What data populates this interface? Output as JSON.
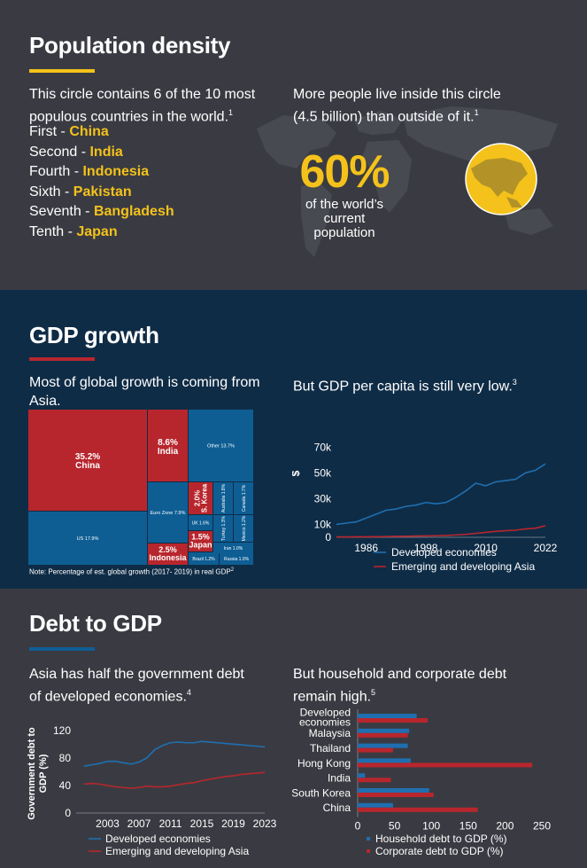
{
  "colors": {
    "yellow": "#f4c21b",
    "red": "#b8262d",
    "blue": "#0e5e94",
    "navy": "#0f2c46",
    "grey": "#3a3b42"
  },
  "population": {
    "title": "Population density",
    "intro": "This circle contains 6 of the 10 most populous countries in the world.",
    "intro_sup": "1",
    "ranks": [
      {
        "rank": "First - ",
        "country": "China"
      },
      {
        "rank": "Second - ",
        "country": "India"
      },
      {
        "rank": "Fourth - ",
        "country": "Indonesia"
      },
      {
        "rank": "Sixth - ",
        "country": "Pakistan"
      },
      {
        "rank": "Seventh - ",
        "country": "Bangladesh"
      },
      {
        "rank": "Tenth - ",
        "country": "Japan"
      }
    ],
    "right_text": "More people live inside this circle (4.5 billion) than outside of it.",
    "right_sup": "1",
    "big_pct": "60%",
    "pct_caption_1": "of the world’s",
    "pct_caption_2": "current",
    "pct_caption_3": "population"
  },
  "gdp": {
    "title": "GDP growth",
    "left_text": "Most of global growth is coming from Asia.",
    "right_text": "But GDP per capita is still very low.",
    "right_sup": "3",
    "note": "Note: Percentage of est. global growth (2017- 2019) in real GDP",
    "note_sup": "2"
  },
  "debt": {
    "title": "Debt to GDP",
    "left_text_1": "Asia has half the government debt",
    "left_text_2": "of developed economies.",
    "left_sup": "4",
    "right_text_1": "But household and corporate debt",
    "right_text_2": "remain high.",
    "right_sup": "5"
  },
  "chart_data": [
    {
      "type": "heatmap",
      "subtype": "treemap",
      "cells": [
        {
          "label": "China",
          "value": 35.2,
          "pct_label": "35.2%",
          "color": "#b8262d"
        },
        {
          "label": "US",
          "value": 17.9,
          "pct_label": "US 17.9%",
          "color": "#0e5e94"
        },
        {
          "label": "India",
          "value": 8.6,
          "pct_label": "8.6%",
          "color": "#b8262d"
        },
        {
          "label": "Other",
          "value": 13.7,
          "pct_label": "Other 13.7%",
          "color": "#0e5e94"
        },
        {
          "label": "Euro Zone",
          "value": 7.9,
          "pct_label": "Euro Zone 7.9%",
          "color": "#0e5e94"
        },
        {
          "label": "Indonesia",
          "value": 2.5,
          "pct_label": "2.5%",
          "color": "#b8262d"
        },
        {
          "label": "S. Korea",
          "value": 2.0,
          "pct_label": "2.0%",
          "color": "#b8262d"
        },
        {
          "label": "Australia",
          "value": 1.8,
          "pct_label": "Australia 1.8%",
          "color": "#0e5e94"
        },
        {
          "label": "Canada",
          "value": 1.7,
          "pct_label": "Canada 1.7%",
          "color": "#0e5e94"
        },
        {
          "label": "UK",
          "value": 1.6,
          "pct_label": "UK 1.6%",
          "color": "#0e5e94"
        },
        {
          "label": "Turkey",
          "value": 1.3,
          "pct_label": "Turkey 1.3%",
          "color": "#0e5e94"
        },
        {
          "label": "Mexico",
          "value": 1.2,
          "pct_label": "Mexico 1.2%",
          "color": "#0e5e94"
        },
        {
          "label": "Japan",
          "value": 1.5,
          "pct_label": "1.5%",
          "color": "#b8262d"
        },
        {
          "label": "Iran",
          "value": 1.0,
          "pct_label": "Iran 1.0%",
          "color": "#0e5e94"
        },
        {
          "label": "Brazil",
          "value": 1.2,
          "pct_label": "Brazil 1.2%",
          "color": "#0e5e94"
        },
        {
          "label": "Russia",
          "value": 1.0,
          "pct_label": "Russia 1.0%",
          "color": "#0e5e94"
        }
      ]
    },
    {
      "type": "line",
      "x": [
        1980,
        1982,
        1984,
        1986,
        1988,
        1990,
        1992,
        1994,
        1996,
        1998,
        2000,
        2002,
        2004,
        2006,
        2008,
        2010,
        2012,
        2014,
        2016,
        2018,
        2020,
        2022
      ],
      "series": [
        {
          "name": "Developed economies",
          "color": "#1f6fb0",
          "values": [
            10,
            11,
            12,
            15,
            18,
            21,
            22,
            24,
            25,
            27,
            26,
            27,
            31,
            36,
            42,
            40,
            43,
            44,
            45,
            50,
            52,
            57
          ]
        },
        {
          "name": "Emerging and developing Asia",
          "color": "#b8262d",
          "values": [
            0.3,
            0.3,
            0.4,
            0.4,
            0.5,
            0.6,
            0.7,
            0.8,
            1.0,
            1.1,
            1.2,
            1.4,
            1.8,
            2.3,
            3.0,
            3.8,
            4.6,
            5.1,
            5.5,
            6.5,
            7.0,
            9.0
          ]
        }
      ],
      "ylabel": "$",
      "yticks": [
        "0",
        "10k",
        "30k",
        "50k",
        "70k"
      ],
      "ytick_values": [
        0,
        10,
        30,
        50,
        70
      ],
      "xticks": [
        "1986",
        "1998",
        "2010",
        "2022"
      ],
      "xtick_values": [
        1986,
        1998,
        2010,
        2022
      ],
      "ylim": [
        0,
        75
      ],
      "xlim": [
        1980,
        2022
      ]
    },
    {
      "type": "line",
      "x": [
        2000,
        2001,
        2002,
        2003,
        2004,
        2005,
        2006,
        2007,
        2008,
        2009,
        2010,
        2011,
        2012,
        2013,
        2014,
        2015,
        2016,
        2017,
        2018,
        2019,
        2020,
        2021,
        2022,
        2023
      ],
      "series": [
        {
          "name": "Developed economies",
          "color": "#1f6fb0",
          "values": [
            68,
            70,
            72,
            75,
            75,
            73,
            71,
            74,
            80,
            92,
            98,
            102,
            103,
            102,
            102,
            104,
            103,
            102,
            101,
            100,
            99,
            98,
            97,
            96
          ]
        },
        {
          "name": "Emerging and developing Asia",
          "color": "#b8262d",
          "values": [
            42,
            43,
            42,
            40,
            38,
            37,
            36,
            37,
            39,
            38,
            38,
            39,
            41,
            43,
            44,
            47,
            49,
            51,
            53,
            54,
            56,
            57,
            58,
            59
          ]
        }
      ],
      "ylabel": "Government debt to GDP (%)",
      "yticks": [
        "0",
        "40",
        "80",
        "120"
      ],
      "ytick_values": [
        0,
        40,
        80,
        120
      ],
      "xticks": [
        "2003",
        "2007",
        "2011",
        "2015",
        "2019",
        "2023"
      ],
      "xtick_values": [
        2003,
        2007,
        2011,
        2015,
        2019,
        2023
      ],
      "ylim": [
        0,
        130
      ],
      "xlim": [
        1999,
        2023
      ]
    },
    {
      "type": "bar",
      "orientation": "horizontal",
      "categories": [
        "Developed economies",
        "Malaysia",
        "Thailand",
        "Hong Kong",
        "India",
        "South Korea",
        "China"
      ],
      "category_lines": [
        [
          "Developed",
          "economies"
        ],
        [
          "Malaysia"
        ],
        [
          "Thailand"
        ],
        [
          "Hong Kong"
        ],
        [
          "India"
        ],
        [
          "South Korea"
        ],
        [
          "China"
        ]
      ],
      "series": [
        {
          "name": "Household debt to GDP (%)",
          "color": "#1f6fb0",
          "values": [
            80,
            70,
            68,
            72,
            10,
            97,
            48
          ]
        },
        {
          "name": "Corporate debt to GDP (%)",
          "color": "#b8262d",
          "values": [
            95,
            68,
            48,
            237,
            45,
            103,
            163
          ]
        }
      ],
      "xticks": [
        "0",
        "50",
        "100",
        "150",
        "200",
        "250"
      ],
      "xtick_values": [
        0,
        50,
        100,
        150,
        200,
        250
      ],
      "xlim": [
        0,
        250
      ]
    }
  ]
}
